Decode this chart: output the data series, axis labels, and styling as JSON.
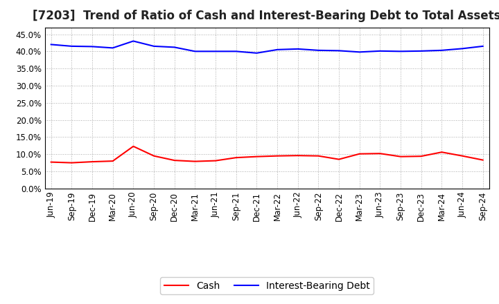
{
  "title": "[7203]  Trend of Ratio of Cash and Interest-Bearing Debt to Total Assets",
  "x_labels": [
    "Jun-19",
    "Sep-19",
    "Dec-19",
    "Mar-20",
    "Jun-20",
    "Sep-20",
    "Dec-20",
    "Mar-21",
    "Jun-21",
    "Sep-21",
    "Dec-21",
    "Mar-22",
    "Jun-22",
    "Sep-22",
    "Dec-22",
    "Mar-23",
    "Jun-23",
    "Sep-23",
    "Dec-23",
    "Mar-24",
    "Jun-24",
    "Sep-24"
  ],
  "cash": [
    7.7,
    7.5,
    7.8,
    8.0,
    12.3,
    9.5,
    8.2,
    7.9,
    8.1,
    9.0,
    9.3,
    9.5,
    9.6,
    9.5,
    8.5,
    10.1,
    10.2,
    9.3,
    9.4,
    10.6,
    9.5,
    8.3
  ],
  "ibd": [
    42.0,
    41.5,
    41.4,
    41.0,
    43.0,
    41.5,
    41.2,
    40.0,
    40.0,
    40.0,
    39.5,
    40.5,
    40.7,
    40.3,
    40.2,
    39.8,
    40.1,
    40.0,
    40.1,
    40.3,
    40.8,
    41.5
  ],
  "cash_color": "#ff0000",
  "ibd_color": "#0000ff",
  "background_color": "#ffffff",
  "grid_color": "#aaaaaa",
  "ylim": [
    0.0,
    47.0
  ],
  "yticks": [
    0.0,
    5.0,
    10.0,
    15.0,
    20.0,
    25.0,
    30.0,
    35.0,
    40.0,
    45.0
  ],
  "legend_cash": "Cash",
  "legend_ibd": "Interest-Bearing Debt",
  "title_fontsize": 12,
  "tick_fontsize": 8.5,
  "legend_fontsize": 10
}
